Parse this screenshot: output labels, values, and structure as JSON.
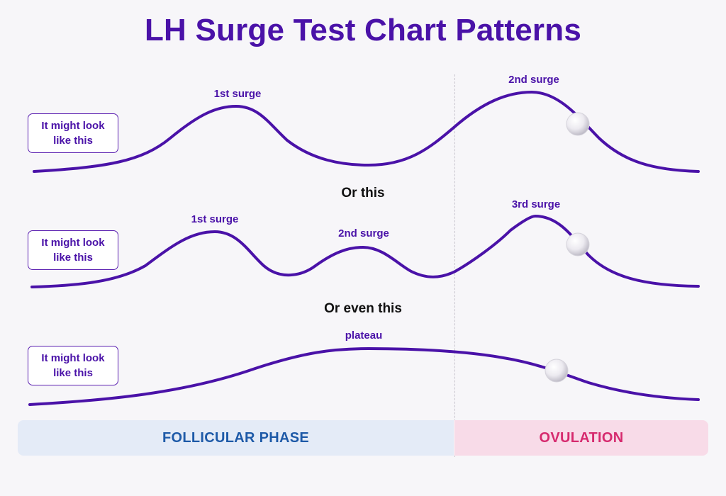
{
  "title": "LH Surge Test Chart Patterns",
  "row_tag": "It might look like this",
  "separators": [
    "Or this",
    "Or even this"
  ],
  "patterns": [
    {
      "peak_labels": [
        "1st surge",
        "2nd surge"
      ],
      "ovulation_marker": true
    },
    {
      "peak_labels": [
        "1st surge",
        "2nd surge",
        "3rd surge"
      ],
      "ovulation_marker": true
    },
    {
      "peak_labels": [
        "plateau"
      ],
      "ovulation_marker": true
    }
  ],
  "phases": {
    "follicular": "FOLLICULAR PHASE",
    "ovulation": "OVULATION"
  },
  "colors": {
    "curve": "#4a12a8",
    "title": "#4a12a8",
    "follicular_band": "#e4ebf7",
    "follicular_text": "#1e5aa8",
    "ovulation_band": "#f8dbe8",
    "ovulation_text": "#d62a6e"
  }
}
